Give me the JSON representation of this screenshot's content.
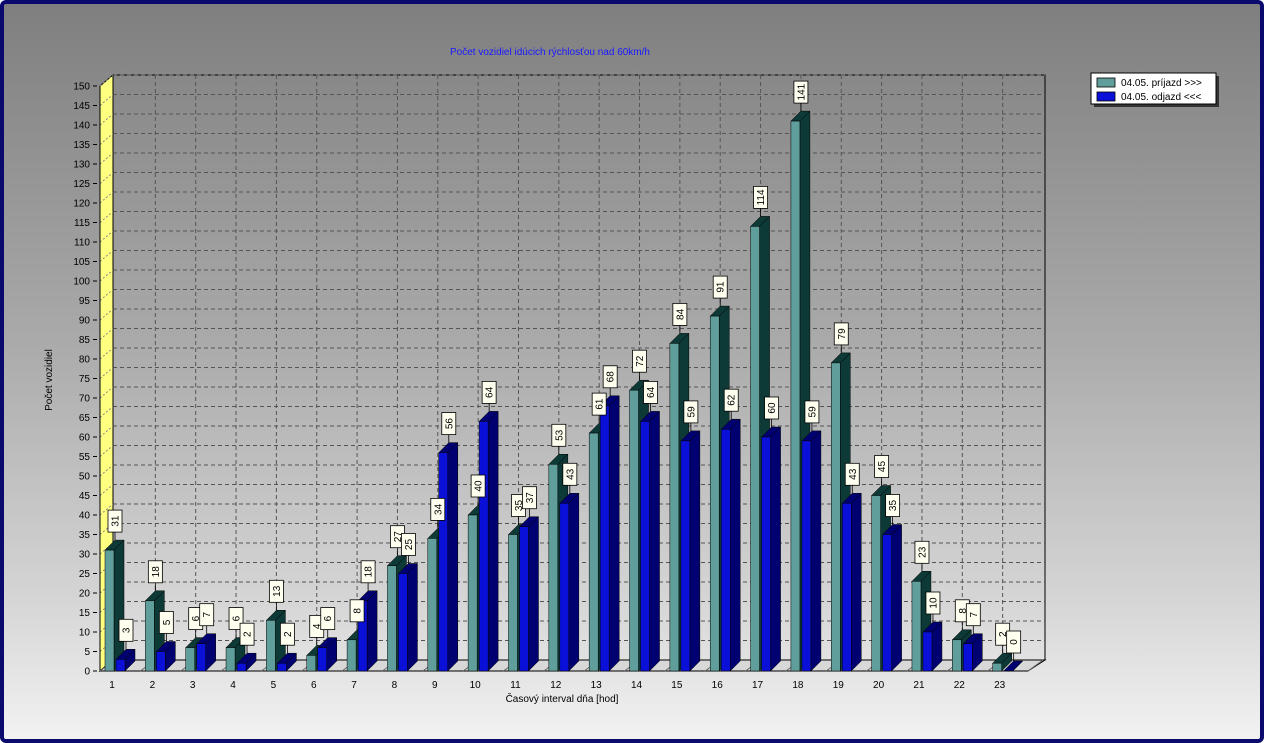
{
  "chart_data": {
    "type": "bar",
    "title": "Počet vozidiel idúcich rýchlosťou nad 60km/h",
    "xlabel": "Časový interval dňa [hod]",
    "ylabel": "Počet vozidiel",
    "ylim": [
      0,
      150
    ],
    "ytick_step": 5,
    "grid": true,
    "legend_position": "top-right",
    "categories": [
      "1",
      "2",
      "3",
      "4",
      "5",
      "6",
      "7",
      "8",
      "9",
      "10",
      "11",
      "12",
      "13",
      "14",
      "15",
      "16",
      "17",
      "18",
      "19",
      "20",
      "21",
      "22",
      "23"
    ],
    "series": [
      {
        "name": "04.05.  príjazd >>>",
        "color": "#5f9e9a",
        "side_color": "#0d3a36",
        "values": [
          31,
          18,
          6,
          6,
          13,
          4,
          8,
          27,
          34,
          40,
          35,
          53,
          61,
          72,
          84,
          91,
          114,
          141,
          79,
          45,
          23,
          8,
          2
        ]
      },
      {
        "name": "04.05.  odjazd <<<",
        "color": "#0a10d8",
        "side_color": "#000070",
        "values": [
          3,
          5,
          7,
          2,
          2,
          6,
          18,
          25,
          56,
          64,
          37,
          43,
          68,
          64,
          59,
          62,
          60,
          59,
          43,
          35,
          10,
          7,
          0
        ]
      }
    ]
  }
}
